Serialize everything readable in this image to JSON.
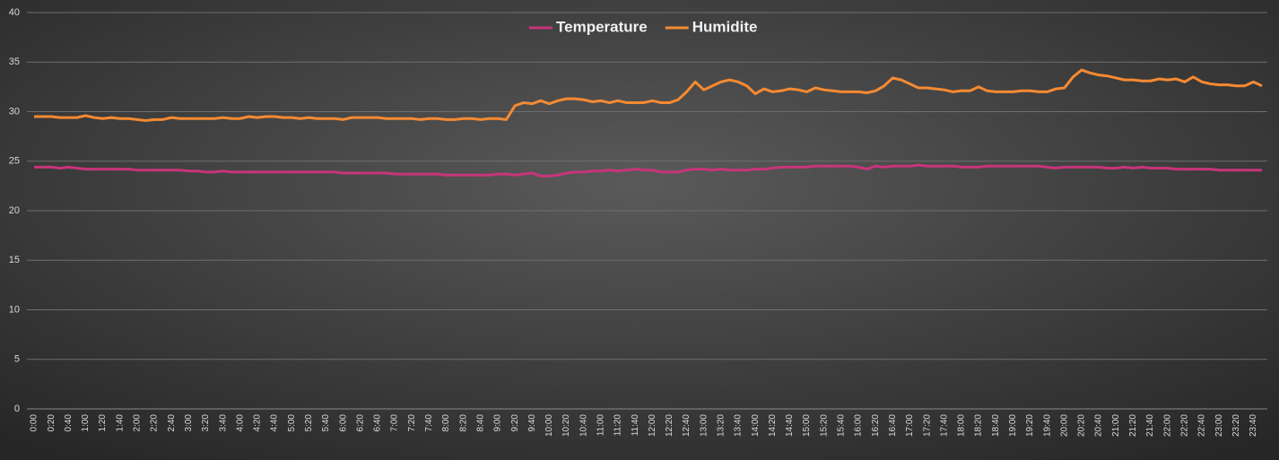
{
  "chart_data": {
    "type": "line",
    "categories": [
      "0:00",
      null,
      "0:20",
      null,
      "0:40",
      null,
      "1:00",
      null,
      "1:20",
      null,
      "1:40",
      null,
      "2:00",
      null,
      "2:20",
      null,
      "2:40",
      null,
      "3:00",
      null,
      "3:20",
      null,
      "3:40",
      null,
      "4:00",
      null,
      "4:20",
      null,
      "4:40",
      null,
      "5:00",
      null,
      "5:20",
      null,
      "5:40",
      null,
      "6:00",
      null,
      "6:20",
      null,
      "6:40",
      null,
      "7:00",
      null,
      "7:20",
      null,
      "7:40",
      null,
      "8:00",
      null,
      "8:20",
      null,
      "8:40",
      null,
      "9:00",
      null,
      "9:20",
      null,
      "9:40",
      null,
      "10:00",
      null,
      "10:20",
      null,
      "10:40",
      null,
      "11:00",
      null,
      "11:20",
      null,
      "11:40",
      null,
      "12:00",
      null,
      "12:20",
      null,
      "12:40",
      null,
      "13:00",
      null,
      "13:20",
      null,
      "13:40",
      null,
      "14:00",
      null,
      "14:20",
      null,
      "14:40",
      null,
      "15:00",
      null,
      "15:20",
      null,
      "15:40",
      null,
      "16:00",
      null,
      "16:20",
      null,
      "16:40",
      null,
      "17:00",
      null,
      "17:20",
      null,
      "17:40",
      null,
      "18:00",
      null,
      "18:20",
      null,
      "18:40",
      null,
      "19:00",
      null,
      "19:20",
      null,
      "19:40",
      null,
      "20:00",
      null,
      "20:20",
      null,
      "20:40",
      null,
      "21:00",
      null,
      "21:20",
      null,
      "21:40",
      null,
      "22:00",
      null,
      "22:20",
      null,
      "22:40",
      null,
      "23:00",
      null,
      "23:20",
      null,
      "23:40",
      null
    ],
    "series": [
      {
        "name": "Temperature",
        "color": "#c8347a",
        "values": [
          24.4,
          24.4,
          24.4,
          24.3,
          24.4,
          24.3,
          24.2,
          24.2,
          24.2,
          24.2,
          24.2,
          24.2,
          24.1,
          24.1,
          24.1,
          24.1,
          24.1,
          24.1,
          24.0,
          24.0,
          23.9,
          23.9,
          24.0,
          23.9,
          23.9,
          23.9,
          23.9,
          23.9,
          23.9,
          23.9,
          23.9,
          23.9,
          23.9,
          23.9,
          23.9,
          23.9,
          23.8,
          23.8,
          23.8,
          23.8,
          23.8,
          23.8,
          23.7,
          23.7,
          23.7,
          23.7,
          23.7,
          23.7,
          23.6,
          23.6,
          23.6,
          23.6,
          23.6,
          23.6,
          23.7,
          23.7,
          23.6,
          23.7,
          23.8,
          23.5,
          23.5,
          23.6,
          23.8,
          23.9,
          23.9,
          24.0,
          24.0,
          24.1,
          24.0,
          24.1,
          24.2,
          24.1,
          24.1,
          23.9,
          23.9,
          23.9,
          24.1,
          24.2,
          24.2,
          24.1,
          24.2,
          24.1,
          24.1,
          24.1,
          24.2,
          24.2,
          24.3,
          24.4,
          24.4,
          24.4,
          24.4,
          24.5,
          24.5,
          24.5,
          24.5,
          24.5,
          24.4,
          24.2,
          24.5,
          24.4,
          24.5,
          24.5,
          24.5,
          24.6,
          24.5,
          24.5,
          24.5,
          24.5,
          24.4,
          24.4,
          24.4,
          24.5,
          24.5,
          24.5,
          24.5,
          24.5,
          24.5,
          24.5,
          24.4,
          24.3,
          24.4,
          24.4,
          24.4,
          24.4,
          24.4,
          24.3,
          24.3,
          24.4,
          24.3,
          24.4,
          24.3,
          24.3,
          24.3,
          24.2,
          24.2,
          24.2,
          24.2,
          24.2,
          24.1,
          24.1,
          24.1,
          24.1,
          24.1,
          24.1
        ]
      },
      {
        "name": "Humidite",
        "color": "#f58a32",
        "values": [
          29.5,
          29.5,
          29.5,
          29.4,
          29.4,
          29.4,
          29.6,
          29.4,
          29.3,
          29.4,
          29.3,
          29.3,
          29.2,
          29.1,
          29.2,
          29.2,
          29.4,
          29.3,
          29.3,
          29.3,
          29.3,
          29.3,
          29.4,
          29.3,
          29.3,
          29.5,
          29.4,
          29.5,
          29.5,
          29.4,
          29.4,
          29.3,
          29.4,
          29.3,
          29.3,
          29.3,
          29.2,
          29.4,
          29.4,
          29.4,
          29.4,
          29.3,
          29.3,
          29.3,
          29.3,
          29.2,
          29.3,
          29.3,
          29.2,
          29.2,
          29.3,
          29.3,
          29.2,
          29.3,
          29.3,
          29.2,
          30.6,
          30.9,
          30.8,
          31.1,
          30.8,
          31.1,
          31.3,
          31.3,
          31.2,
          31.0,
          31.1,
          30.9,
          31.1,
          30.9,
          30.9,
          30.9,
          31.1,
          30.9,
          30.9,
          31.2,
          32.0,
          33.0,
          32.2,
          32.6,
          33.0,
          33.2,
          33.0,
          32.6,
          31.8,
          32.3,
          32.0,
          32.1,
          32.3,
          32.2,
          32.0,
          32.4,
          32.2,
          32.1,
          32.0,
          32.0,
          32.0,
          31.9,
          32.1,
          32.6,
          33.4,
          33.2,
          32.8,
          32.4,
          32.4,
          32.3,
          32.2,
          32.0,
          32.1,
          32.1,
          32.5,
          32.1,
          32.0,
          32.0,
          32.0,
          32.1,
          32.1,
          32.0,
          32.0,
          32.3,
          32.4,
          33.5,
          34.2,
          33.9,
          33.7,
          33.6,
          33.4,
          33.2,
          33.2,
          33.1,
          33.1,
          33.3,
          33.2,
          33.3,
          33.0,
          33.5,
          33.0,
          32.8,
          32.7,
          32.7,
          32.6,
          32.6,
          33.0,
          32.6
        ]
      }
    ],
    "ylim": [
      0,
      40
    ],
    "yticks": [
      0,
      5,
      10,
      15,
      20,
      25,
      30,
      35,
      40
    ],
    "grid": true,
    "legend": "top"
  }
}
